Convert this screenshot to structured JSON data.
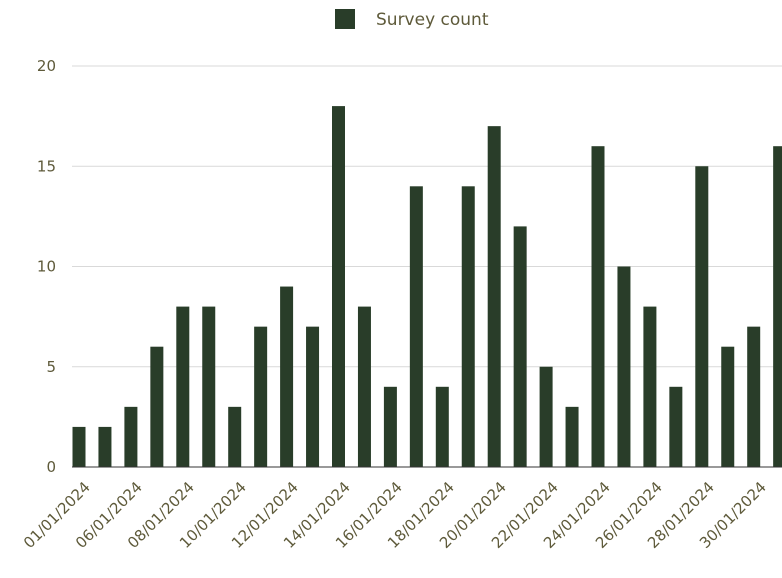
{
  "chart_data": {
    "type": "bar",
    "legend": {
      "label": "Survey count",
      "position": "top"
    },
    "series": [
      {
        "name": "Survey count",
        "color": "#293d29",
        "values": [
          2,
          2,
          3,
          6,
          8,
          8,
          3,
          7,
          9,
          7,
          18,
          8,
          4,
          14,
          4,
          14,
          17,
          12,
          5,
          3,
          16,
          10,
          8,
          4,
          15,
          6,
          7,
          16
        ]
      }
    ],
    "x_tick_labels": [
      "01/01/2024",
      "06/01/2024",
      "08/01/2024",
      "10/01/2024",
      "12/01/2024",
      "14/01/2024",
      "16/01/2024",
      "18/01/2024",
      "20/01/2024",
      "22/01/2024",
      "24/01/2024",
      "26/01/2024",
      "28/01/2024",
      "30/01/2024"
    ],
    "y_ticks": [
      "0",
      "5",
      "10",
      "15",
      "20"
    ],
    "ylim": [
      0,
      20
    ],
    "grid": true
  }
}
